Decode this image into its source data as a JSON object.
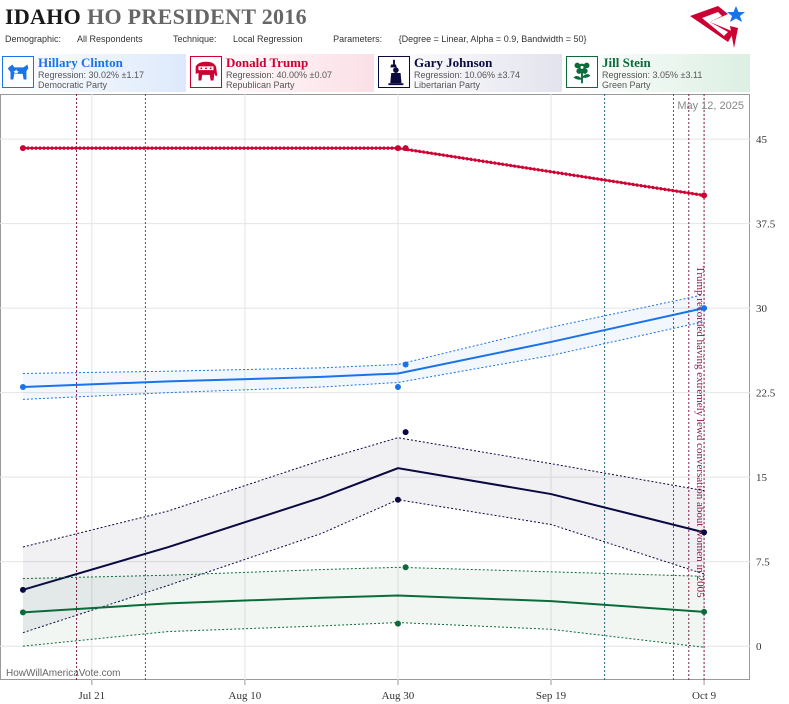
{
  "header": {
    "state": "IDAHO",
    "title_rest": "HO PRESIDENT 2016",
    "demographic_label": "Demographic:",
    "demographic": "All Respondents",
    "technique_label": "Technique:",
    "technique": "Local Regression",
    "parameters_label": "Parameters:",
    "parameters": "{Degree = Linear, Alpha = 0.9, Bandwidth = 50}"
  },
  "candidates": [
    {
      "name": "Hillary Clinton",
      "regression": "Regression: 30.02% ±1.17",
      "party": "Democratic Party",
      "color": "#1a73e8",
      "icon": "donkey-icon"
    },
    {
      "name": "Donald Trump",
      "regression": "Regression: 40.00% ±0.07",
      "party": "Republican Party",
      "color": "#cc0033",
      "icon": "elephant-icon"
    },
    {
      "name": "Gary Johnson",
      "regression": "Regression: 10.06% ±3.74",
      "party": "Libertarian Party",
      "color": "#0a0a40",
      "icon": "liberty-icon"
    },
    {
      "name": "Jill Stein",
      "regression": "Regression: 3.05% ±3.11",
      "party": "Green Party",
      "color": "#0b6b3a",
      "icon": "flower-icon"
    }
  ],
  "date_stamp": "May 12, 2025",
  "watermark": "HowWillAmericaVote.com",
  "annotation": "Trump recorded having extremely lewd conversation about women in 2005",
  "chart_data": {
    "type": "line",
    "x_tick_labels": [
      "Jul 21",
      "Aug 10",
      "Aug 30",
      "Sep 19",
      "Oct 9"
    ],
    "x_tick_dates": [
      "2016-07-21",
      "2016-08-10",
      "2016-08-30",
      "2016-09-19",
      "2016-10-09"
    ],
    "xlim": [
      "2016-07-09",
      "2016-10-15"
    ],
    "y_tick_labels": [
      "0",
      "7.5",
      "15",
      "22.5",
      "30",
      "37.5",
      "45"
    ],
    "ylim": [
      -3,
      49
    ],
    "y_axis_side": "right",
    "grid": true,
    "vertical_lines": [
      {
        "date": "2016-07-19",
        "color": "#8b1a4a"
      },
      {
        "date": "2016-07-28",
        "color": "#1a6b8a"
      },
      {
        "date": "2016-09-26",
        "color": "#1a6b8a"
      },
      {
        "date": "2016-10-05",
        "color": "#1a6b8a"
      },
      {
        "date": "2016-10-07",
        "color": "#8b1a4a"
      },
      {
        "date": "2016-10-09",
        "color": "#8b1a4a"
      }
    ],
    "series": [
      {
        "name": "Donald Trump",
        "color": "#cc0033",
        "x": [
          "2016-07-12",
          "2016-08-30",
          "2016-10-09"
        ],
        "y": [
          44.2,
          44.2,
          40.0
        ],
        "band_upper": [
          44.3,
          44.3,
          40.1
        ],
        "band_lower": [
          44.1,
          44.1,
          39.9
        ],
        "points_x": [
          "2016-07-12",
          "2016-08-30",
          "2016-08-31",
          "2016-10-09"
        ],
        "points_y": [
          44.2,
          44.2,
          44.2,
          40.0
        ]
      },
      {
        "name": "Hillary Clinton",
        "color": "#1a73e8",
        "x": [
          "2016-07-12",
          "2016-07-31",
          "2016-08-20",
          "2016-08-30",
          "2016-09-19",
          "2016-10-09"
        ],
        "y": [
          23.0,
          23.5,
          23.9,
          24.2,
          27.0,
          30.0
        ],
        "band_upper": [
          24.2,
          24.4,
          24.7,
          25.0,
          28.3,
          31.2
        ],
        "band_lower": [
          21.9,
          22.5,
          23.0,
          23.4,
          25.8,
          28.8
        ],
        "points_x": [
          "2016-07-12",
          "2016-08-31",
          "2016-08-30",
          "2016-10-09"
        ],
        "points_y": [
          23.0,
          25.0,
          23.0,
          30.0
        ]
      },
      {
        "name": "Gary Johnson",
        "color": "#0a0a40",
        "x": [
          "2016-07-12",
          "2016-07-31",
          "2016-08-20",
          "2016-08-30",
          "2016-09-19",
          "2016-10-09"
        ],
        "y": [
          5.0,
          8.8,
          13.2,
          15.8,
          13.5,
          10.1
        ],
        "band_upper": [
          8.8,
          12.0,
          16.5,
          18.5,
          16.2,
          13.8
        ],
        "band_lower": [
          1.2,
          5.4,
          10.0,
          13.0,
          10.8,
          6.4
        ],
        "points_x": [
          "2016-07-12",
          "2016-08-31",
          "2016-08-30",
          "2016-10-09"
        ],
        "points_y": [
          5.0,
          19.0,
          13.0,
          10.1
        ]
      },
      {
        "name": "Jill Stein",
        "color": "#0b6b3a",
        "x": [
          "2016-07-12",
          "2016-07-31",
          "2016-08-20",
          "2016-08-30",
          "2016-09-19",
          "2016-10-09"
        ],
        "y": [
          3.0,
          3.8,
          4.3,
          4.5,
          4.0,
          3.05
        ],
        "band_upper": [
          6.0,
          6.3,
          6.8,
          7.0,
          6.6,
          6.2
        ],
        "band_lower": [
          0.0,
          1.3,
          1.8,
          2.1,
          1.5,
          -0.1
        ],
        "points_x": [
          "2016-07-12",
          "2016-08-31",
          "2016-08-30",
          "2016-10-09"
        ],
        "points_y": [
          3.0,
          7.0,
          2.0,
          3.05
        ]
      }
    ]
  }
}
